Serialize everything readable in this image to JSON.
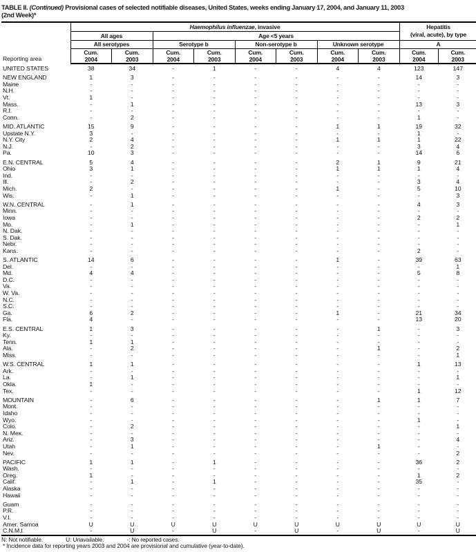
{
  "title": {
    "table_label": "TABLE II.",
    "continued": "(Continued)",
    "text": " Provisional cases of selected notifiable diseases, United States, weeks ending January 17, 2004, and January 11, 2003",
    "line2": "(2nd Week)*"
  },
  "header": {
    "reporting_area": "Reporting area",
    "disease_group": {
      "italic": "Haemophilus influenzae",
      "rest": ", invasive"
    },
    "hepatitis_group": {
      "line1": "Hepatitis",
      "line2": "(viral, acute), by type"
    },
    "age_groups": {
      "all_ages": "All ages",
      "under5": "Age <5 years"
    },
    "serotype_groups": [
      "All serotypes",
      "Serotype b",
      "Non-serotype b",
      "Unknown serotype",
      "A"
    ],
    "cum_label": "Cum.",
    "years": [
      "2004",
      "2003",
      "2004",
      "2003",
      "2004",
      "2003",
      "2004",
      "2003",
      "2004",
      "2003"
    ]
  },
  "rows": [
    {
      "area": "UNITED STATES",
      "kind": "summary",
      "gap": true,
      "values": [
        "38",
        "34",
        "-",
        "1",
        "-",
        "-",
        "4",
        "4",
        "123",
        "147"
      ]
    },
    {
      "area": "NEW ENGLAND",
      "kind": "region",
      "gap": true,
      "values": [
        "1",
        "3",
        "-",
        "-",
        "-",
        "-",
        "-",
        "-",
        "14",
        "3"
      ]
    },
    {
      "area": "Maine",
      "kind": "state",
      "gap": false,
      "values": [
        "-",
        "-",
        "-",
        "-",
        "-",
        "-",
        "-",
        "-",
        "-",
        "-"
      ]
    },
    {
      "area": "N.H.",
      "kind": "state",
      "gap": false,
      "values": [
        "-",
        "-",
        "-",
        "-",
        "-",
        "-",
        "-",
        "-",
        "-",
        "-"
      ]
    },
    {
      "area": "Vt.",
      "kind": "state",
      "gap": false,
      "values": [
        "1",
        "-",
        "-",
        "-",
        "-",
        "-",
        "-",
        "-",
        "-",
        "-"
      ]
    },
    {
      "area": "Mass.",
      "kind": "state",
      "gap": false,
      "values": [
        "-",
        "1",
        "-",
        "-",
        "-",
        "-",
        "-",
        "-",
        "13",
        "3"
      ]
    },
    {
      "area": "R.I.",
      "kind": "state",
      "gap": false,
      "values": [
        "-",
        "-",
        "-",
        "-",
        "-",
        "-",
        "-",
        "-",
        "-",
        "-"
      ]
    },
    {
      "area": "Conn.",
      "kind": "state",
      "gap": false,
      "values": [
        "-",
        "2",
        "-",
        "-",
        "-",
        "-",
        "-",
        "-",
        "1",
        "-"
      ]
    },
    {
      "area": "MID. ATLANTIC",
      "kind": "region",
      "gap": true,
      "values": [
        "15",
        "9",
        "-",
        "-",
        "-",
        "-",
        "1",
        "1",
        "19",
        "32"
      ]
    },
    {
      "area": "Upstate N.Y.",
      "kind": "state",
      "gap": false,
      "values": [
        "3",
        "-",
        "-",
        "-",
        "-",
        "-",
        "-",
        "-",
        "1",
        "-"
      ]
    },
    {
      "area": "N.Y. City",
      "kind": "state",
      "gap": false,
      "values": [
        "2",
        "4",
        "-",
        "-",
        "-",
        "-",
        "1",
        "1",
        "1",
        "22"
      ]
    },
    {
      "area": "N.J.",
      "kind": "state",
      "gap": false,
      "values": [
        "-",
        "2",
        "-",
        "-",
        "-",
        "-",
        "-",
        "-",
        "3",
        "4"
      ]
    },
    {
      "area": "Pa.",
      "kind": "state",
      "gap": false,
      "values": [
        "10",
        "3",
        "-",
        "-",
        "-",
        "-",
        "-",
        "-",
        "14",
        "6"
      ]
    },
    {
      "area": "E.N. CENTRAL",
      "kind": "region",
      "gap": true,
      "values": [
        "5",
        "4",
        "-",
        "-",
        "-",
        "-",
        "2",
        "1",
        "9",
        "21"
      ]
    },
    {
      "area": "Ohio",
      "kind": "state",
      "gap": false,
      "values": [
        "3",
        "1",
        "-",
        "-",
        "-",
        "-",
        "1",
        "1",
        "1",
        "4"
      ]
    },
    {
      "area": "Ind.",
      "kind": "state",
      "gap": false,
      "values": [
        "-",
        "-",
        "-",
        "-",
        "-",
        "-",
        "-",
        "-",
        "-",
        "-"
      ]
    },
    {
      "area": "Ill.",
      "kind": "state",
      "gap": false,
      "values": [
        "-",
        "2",
        "-",
        "-",
        "-",
        "-",
        "-",
        "-",
        "3",
        "4"
      ]
    },
    {
      "area": "Mich.",
      "kind": "state",
      "gap": false,
      "values": [
        "2",
        "-",
        "-",
        "-",
        "-",
        "-",
        "1",
        "-",
        "5",
        "10"
      ]
    },
    {
      "area": "Wis.",
      "kind": "state",
      "gap": false,
      "values": [
        "-",
        "1",
        "-",
        "-",
        "-",
        "-",
        "-",
        "-",
        "-",
        "3"
      ]
    },
    {
      "area": "W.N. CENTRAL",
      "kind": "region",
      "gap": true,
      "values": [
        "-",
        "1",
        "-",
        "-",
        "-",
        "-",
        "-",
        "-",
        "4",
        "3"
      ]
    },
    {
      "area": "Minn.",
      "kind": "state",
      "gap": false,
      "values": [
        "-",
        "-",
        "-",
        "-",
        "-",
        "-",
        "-",
        "-",
        "-",
        "-"
      ]
    },
    {
      "area": "Iowa",
      "kind": "state",
      "gap": false,
      "values": [
        "-",
        "-",
        "-",
        "-",
        "-",
        "-",
        "-",
        "-",
        "2",
        "2"
      ]
    },
    {
      "area": "Mo.",
      "kind": "state",
      "gap": false,
      "values": [
        "-",
        "1",
        "-",
        "-",
        "-",
        "-",
        "-",
        "-",
        "-",
        "1"
      ]
    },
    {
      "area": "N. Dak.",
      "kind": "state",
      "gap": false,
      "values": [
        "-",
        "-",
        "-",
        "-",
        "-",
        "-",
        "-",
        "-",
        "-",
        "-"
      ]
    },
    {
      "area": "S. Dak.",
      "kind": "state",
      "gap": false,
      "values": [
        "-",
        "-",
        "-",
        "-",
        "-",
        "-",
        "-",
        "-",
        "-",
        "-"
      ]
    },
    {
      "area": "Nebr.",
      "kind": "state",
      "gap": false,
      "values": [
        "-",
        "-",
        "-",
        "-",
        "-",
        "-",
        "-",
        "-",
        "-",
        "-"
      ]
    },
    {
      "area": "Kans.",
      "kind": "state",
      "gap": false,
      "values": [
        "-",
        "-",
        "-",
        "-",
        "-",
        "-",
        "-",
        "-",
        "2",
        "-"
      ]
    },
    {
      "area": "S. ATLANTIC",
      "kind": "region",
      "gap": true,
      "values": [
        "14",
        "6",
        "-",
        "-",
        "-",
        "-",
        "1",
        "-",
        "39",
        "63"
      ]
    },
    {
      "area": "Del.",
      "kind": "state",
      "gap": false,
      "values": [
        "-",
        "-",
        "-",
        "-",
        "-",
        "-",
        "-",
        "-",
        "-",
        "1"
      ]
    },
    {
      "area": "Md.",
      "kind": "state",
      "gap": false,
      "values": [
        "4",
        "4",
        "-",
        "-",
        "-",
        "-",
        "-",
        "-",
        "5",
        "8"
      ]
    },
    {
      "area": "D.C.",
      "kind": "state",
      "gap": false,
      "values": [
        "-",
        "-",
        "-",
        "-",
        "-",
        "-",
        "-",
        "-",
        "-",
        "-"
      ]
    },
    {
      "area": "Va.",
      "kind": "state",
      "gap": false,
      "values": [
        "-",
        "-",
        "-",
        "-",
        "-",
        "-",
        "-",
        "-",
        "-",
        "-"
      ]
    },
    {
      "area": "W. Va.",
      "kind": "state",
      "gap": false,
      "values": [
        "-",
        "-",
        "-",
        "-",
        "-",
        "-",
        "-",
        "-",
        "-",
        "-"
      ]
    },
    {
      "area": "N.C.",
      "kind": "state",
      "gap": false,
      "values": [
        "-",
        "-",
        "-",
        "-",
        "-",
        "-",
        "-",
        "-",
        "-",
        "-"
      ]
    },
    {
      "area": "S.C.",
      "kind": "state",
      "gap": false,
      "values": [
        "-",
        "-",
        "-",
        "-",
        "-",
        "-",
        "-",
        "-",
        "-",
        "-"
      ]
    },
    {
      "area": "Ga.",
      "kind": "state",
      "gap": false,
      "values": [
        "6",
        "2",
        "-",
        "-",
        "-",
        "-",
        "1",
        "-",
        "21",
        "34"
      ]
    },
    {
      "area": "Fla.",
      "kind": "state",
      "gap": false,
      "values": [
        "4",
        "-",
        "-",
        "-",
        "-",
        "-",
        "-",
        "-",
        "13",
        "20"
      ]
    },
    {
      "area": "E.S. CENTRAL",
      "kind": "region",
      "gap": true,
      "values": [
        "1",
        "3",
        "-",
        "-",
        "-",
        "-",
        "-",
        "1",
        "-",
        "3"
      ]
    },
    {
      "area": "Ky.",
      "kind": "state",
      "gap": false,
      "values": [
        "-",
        "-",
        "-",
        "-",
        "-",
        "-",
        "-",
        "-",
        "-",
        "-"
      ]
    },
    {
      "area": "Tenn.",
      "kind": "state",
      "gap": false,
      "values": [
        "1",
        "1",
        "-",
        "-",
        "-",
        "-",
        "-",
        "-",
        "-",
        "-"
      ]
    },
    {
      "area": "Ala.",
      "kind": "state",
      "gap": false,
      "values": [
        "-",
        "2",
        "-",
        "-",
        "-",
        "-",
        "-",
        "1",
        "-",
        "2"
      ]
    },
    {
      "area": "Miss.",
      "kind": "state",
      "gap": false,
      "values": [
        "-",
        "-",
        "-",
        "-",
        "-",
        "-",
        "-",
        "-",
        "-",
        "1"
      ]
    },
    {
      "area": "W.S. CENTRAL",
      "kind": "region",
      "gap": true,
      "values": [
        "1",
        "1",
        "-",
        "-",
        "-",
        "-",
        "-",
        "-",
        "1",
        "13"
      ]
    },
    {
      "area": "Ark.",
      "kind": "state",
      "gap": false,
      "values": [
        "-",
        "-",
        "-",
        "-",
        "-",
        "-",
        "-",
        "-",
        "-",
        "-"
      ]
    },
    {
      "area": "La.",
      "kind": "state",
      "gap": false,
      "values": [
        "-",
        "1",
        "-",
        "-",
        "-",
        "-",
        "-",
        "-",
        "-",
        "1"
      ]
    },
    {
      "area": "Okla.",
      "kind": "state",
      "gap": false,
      "values": [
        "1",
        "-",
        "-",
        "-",
        "-",
        "-",
        "-",
        "-",
        "-",
        "-"
      ]
    },
    {
      "area": "Tex.",
      "kind": "state",
      "gap": false,
      "values": [
        "-",
        "-",
        "-",
        "-",
        "-",
        "-",
        "-",
        "-",
        "1",
        "12"
      ]
    },
    {
      "area": "MOUNTAIN",
      "kind": "region",
      "gap": true,
      "values": [
        "-",
        "6",
        "-",
        "-",
        "-",
        "-",
        "-",
        "1",
        "1",
        "7"
      ]
    },
    {
      "area": "Mont.",
      "kind": "state",
      "gap": false,
      "values": [
        "-",
        "-",
        "-",
        "-",
        "-",
        "-",
        "-",
        "-",
        "-",
        "-"
      ]
    },
    {
      "area": "Idaho",
      "kind": "state",
      "gap": false,
      "values": [
        "-",
        "-",
        "-",
        "-",
        "-",
        "-",
        "-",
        "-",
        "-",
        "-"
      ]
    },
    {
      "area": "Wyo.",
      "kind": "state",
      "gap": false,
      "values": [
        "-",
        "-",
        "-",
        "-",
        "-",
        "-",
        "-",
        "-",
        "1",
        "-"
      ]
    },
    {
      "area": "Colo.",
      "kind": "state",
      "gap": false,
      "values": [
        "-",
        "2",
        "-",
        "-",
        "-",
        "-",
        "-",
        "-",
        "-",
        "1"
      ]
    },
    {
      "area": "N. Mex.",
      "kind": "state",
      "gap": false,
      "values": [
        "-",
        "-",
        "-",
        "-",
        "-",
        "-",
        "-",
        "-",
        "-",
        "-"
      ]
    },
    {
      "area": "Ariz.",
      "kind": "state",
      "gap": false,
      "values": [
        "-",
        "3",
        "-",
        "-",
        "-",
        "-",
        "-",
        "-",
        "-",
        "4"
      ]
    },
    {
      "area": "Utah",
      "kind": "state",
      "gap": false,
      "values": [
        "-",
        "1",
        "-",
        "-",
        "-",
        "-",
        "-",
        "1",
        "-",
        "-"
      ]
    },
    {
      "area": "Nev.",
      "kind": "state",
      "gap": false,
      "values": [
        "-",
        "-",
        "-",
        "-",
        "-",
        "-",
        "-",
        "-",
        "-",
        "2"
      ]
    },
    {
      "area": "PACIFIC",
      "kind": "region",
      "gap": true,
      "values": [
        "1",
        "1",
        "-",
        "1",
        "-",
        "-",
        "-",
        "-",
        "36",
        "2"
      ]
    },
    {
      "area": "Wash.",
      "kind": "state",
      "gap": false,
      "values": [
        "-",
        "-",
        "-",
        "-",
        "-",
        "-",
        "-",
        "-",
        "-",
        "-"
      ]
    },
    {
      "area": "Oreg.",
      "kind": "state",
      "gap": false,
      "values": [
        "1",
        "-",
        "-",
        "-",
        "-",
        "-",
        "-",
        "-",
        "1",
        "2"
      ]
    },
    {
      "area": "Calif.",
      "kind": "state",
      "gap": false,
      "values": [
        "-",
        "1",
        "-",
        "1",
        "-",
        "-",
        "-",
        "-",
        "35",
        "-"
      ]
    },
    {
      "area": "Alaska",
      "kind": "state",
      "gap": false,
      "values": [
        "-",
        "-",
        "-",
        "-",
        "-",
        "-",
        "-",
        "-",
        "-",
        "-"
      ]
    },
    {
      "area": "Hawaii",
      "kind": "state",
      "gap": false,
      "values": [
        "-",
        "-",
        "-",
        "-",
        "-",
        "-",
        "-",
        "-",
        "-",
        "-"
      ]
    },
    {
      "area": "Guam",
      "kind": "territory",
      "gap": true,
      "values": [
        "-",
        "-",
        "-",
        "-",
        "-",
        "-",
        "-",
        "-",
        "-",
        "-"
      ]
    },
    {
      "area": "P.R.",
      "kind": "territory",
      "gap": false,
      "values": [
        "-",
        "-",
        "-",
        "-",
        "-",
        "-",
        "-",
        "-",
        "-",
        "-"
      ]
    },
    {
      "area": "V.I.",
      "kind": "territory",
      "gap": false,
      "values": [
        "-",
        "-",
        "-",
        "-",
        "-",
        "-",
        "-",
        "-",
        "-",
        "-"
      ]
    },
    {
      "area": "Amer. Samoa",
      "kind": "territory",
      "gap": false,
      "values": [
        "U",
        "U",
        "U",
        "U",
        "U",
        "U",
        "U",
        "U",
        "U",
        "U"
      ]
    },
    {
      "area": "C.N.M.I.",
      "kind": "territory",
      "gap": false,
      "values": [
        "-",
        "U",
        "-",
        "U",
        "-",
        "U",
        "-",
        "U",
        "-",
        "U"
      ]
    }
  ],
  "footnotes": {
    "legend": [
      "N: Not notifiable.",
      "U: Unavailable.",
      "-: No reported cases."
    ],
    "note": "* Incidence data for reporting years 2003 and 2004 are provisional and cumulative (year-to-date)."
  }
}
